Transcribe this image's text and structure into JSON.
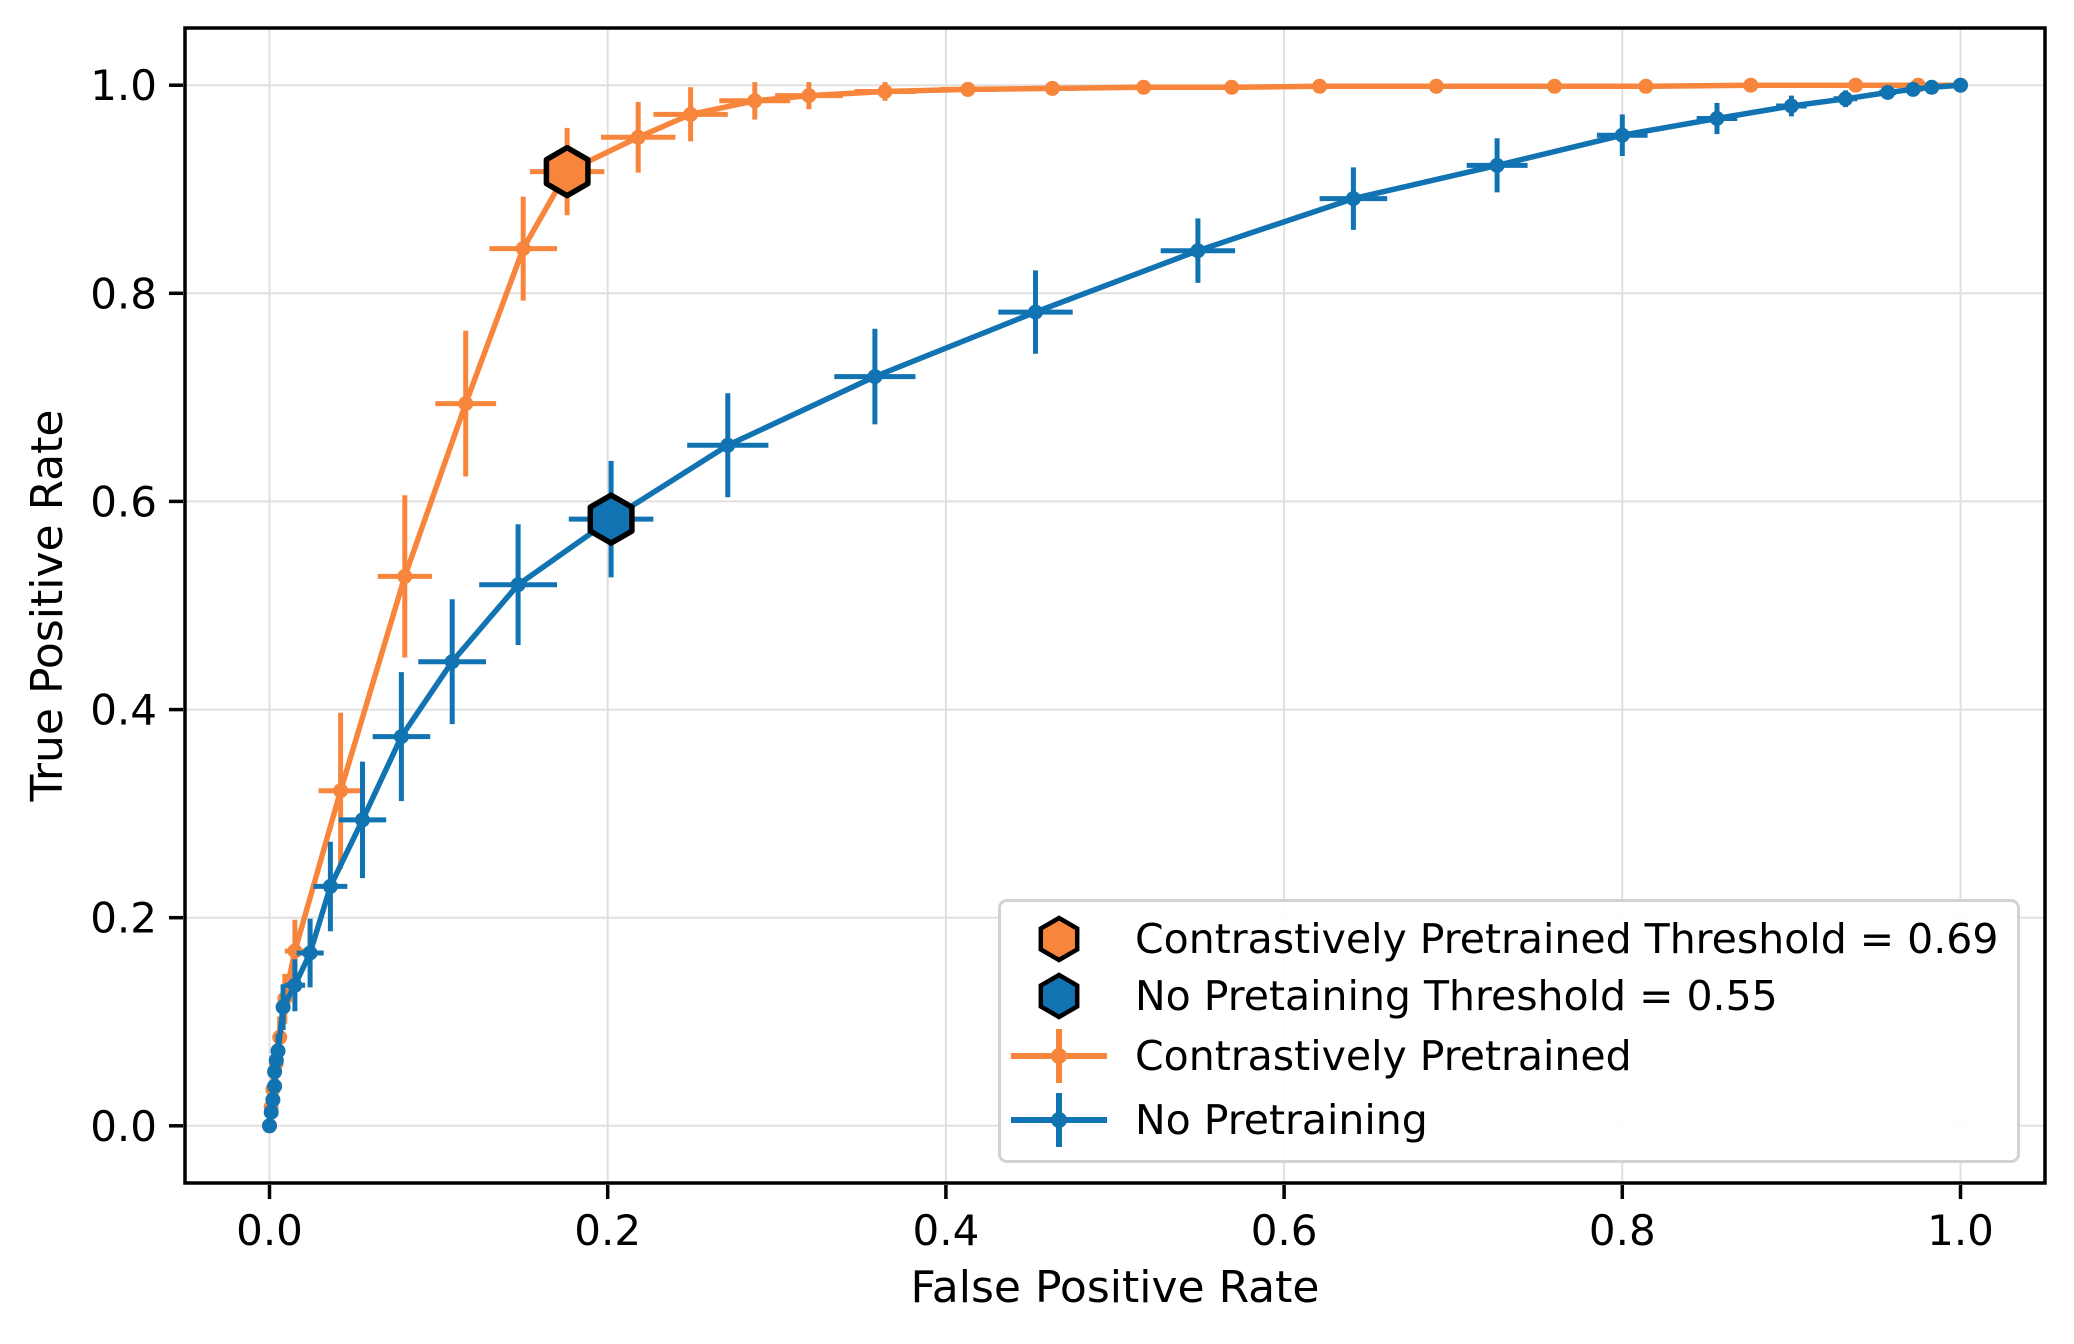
{
  "chart_data": {
    "type": "line",
    "title": "",
    "xlabel": "False Positive Rate",
    "ylabel": "True Positive Rate",
    "xlim": [
      -0.05,
      1.05
    ],
    "ylim": [
      -0.055,
      1.055
    ],
    "grid": true,
    "legend_position": "lower right",
    "grid_color": "#e0e0e0",
    "axes_color": "#000000",
    "xticks": {
      "values": [
        0,
        0.2,
        0.4,
        0.6,
        0.8,
        1.0
      ],
      "labels": [
        "0.0",
        "0.2",
        "0.4",
        "0.6",
        "0.8",
        "1.0"
      ]
    },
    "yticks": {
      "values": [
        0,
        0.2,
        0.4,
        0.6,
        0.8,
        1.0
      ],
      "labels": [
        "0.0",
        "0.2",
        "0.4",
        "0.6",
        "0.8",
        "1.0"
      ]
    },
    "series": [
      {
        "name": "Contrastively Pretrained",
        "color": "#f7863c",
        "x": [
          0.0,
          0.001,
          0.002,
          0.004,
          0.006,
          0.009,
          0.015,
          0.042,
          0.08,
          0.116,
          0.15,
          0.176,
          0.218,
          0.249,
          0.287,
          0.319,
          0.364,
          0.413,
          0.463,
          0.517,
          0.569,
          0.621,
          0.69,
          0.76,
          0.814,
          0.876,
          0.938,
          0.975,
          1.0
        ],
        "y": [
          0.0,
          0.018,
          0.035,
          0.06,
          0.085,
          0.122,
          0.168,
          0.322,
          0.528,
          0.694,
          0.843,
          0.917,
          0.95,
          0.972,
          0.985,
          0.99,
          0.994,
          0.996,
          0.997,
          0.998,
          0.998,
          0.999,
          0.999,
          0.999,
          0.999,
          1.0,
          1.0,
          1.0,
          1.0
        ],
        "xerr": [
          0,
          0.001,
          0.002,
          0.002,
          0.003,
          0.004,
          0.006,
          0.013,
          0.016,
          0.018,
          0.02,
          0.022,
          0.022,
          0.022,
          0.021,
          0.02,
          0.018,
          0.016,
          0.014,
          0.012,
          0.01,
          0.008,
          0.006,
          0.005,
          0.004,
          0.003,
          0.002,
          0.001,
          0
        ],
        "yerr": [
          0,
          0.008,
          0.012,
          0.016,
          0.02,
          0.024,
          0.03,
          0.075,
          0.078,
          0.07,
          0.05,
          0.042,
          0.034,
          0.026,
          0.018,
          0.013,
          0.009,
          0.007,
          0.005,
          0.004,
          0.003,
          0.003,
          0.002,
          0.002,
          0.002,
          0.001,
          0.001,
          0.001,
          0
        ]
      },
      {
        "name": "No Pretraining",
        "color": "#1173b1",
        "x": [
          0.0,
          0.001,
          0.002,
          0.003,
          0.003,
          0.004,
          0.005,
          0.008,
          0.015,
          0.024,
          0.036,
          0.055,
          0.078,
          0.108,
          0.147,
          0.202,
          0.271,
          0.358,
          0.453,
          0.549,
          0.641,
          0.726,
          0.8,
          0.856,
          0.9,
          0.932,
          0.957,
          0.972,
          0.983,
          1.0
        ],
        "y": [
          0.0,
          0.013,
          0.025,
          0.038,
          0.052,
          0.063,
          0.072,
          0.114,
          0.135,
          0.166,
          0.23,
          0.294,
          0.374,
          0.446,
          0.52,
          0.583,
          0.654,
          0.72,
          0.782,
          0.841,
          0.891,
          0.923,
          0.952,
          0.968,
          0.98,
          0.987,
          0.993,
          0.996,
          0.998,
          1.0
        ],
        "xerr": [
          0,
          0.001,
          0.001,
          0.002,
          0.002,
          0.002,
          0.003,
          0.004,
          0.006,
          0.008,
          0.01,
          0.014,
          0.017,
          0.02,
          0.023,
          0.025,
          0.024,
          0.024,
          0.022,
          0.022,
          0.02,
          0.018,
          0.015,
          0.012,
          0.009,
          0.007,
          0.005,
          0.004,
          0.003,
          0
        ],
        "yerr": [
          0,
          0.006,
          0.01,
          0.012,
          0.014,
          0.015,
          0.016,
          0.022,
          0.025,
          0.033,
          0.043,
          0.056,
          0.062,
          0.06,
          0.058,
          0.056,
          0.05,
          0.046,
          0.04,
          0.031,
          0.03,
          0.026,
          0.02,
          0.015,
          0.01,
          0.008,
          0.006,
          0.004,
          0.003,
          0
        ]
      }
    ],
    "threshold_points": [
      {
        "label": "Contrastively Pretrained Threshold = 0.69",
        "threshold": 0.69,
        "x": 0.176,
        "y": 0.917,
        "color": "#f7863c"
      },
      {
        "label": "No Pretaining Threshold = 0.55",
        "threshold": 0.55,
        "x": 0.202,
        "y": 0.583,
        "color": "#1173b1"
      }
    ],
    "legend": {
      "entries": [
        {
          "marker": "hexagon",
          "label": "Contrastively Pretrained Threshold = 0.69"
        },
        {
          "marker": "hexagon",
          "label": "No Pretaining Threshold = 0.55"
        },
        {
          "marker": "errorbar",
          "label": "Contrastively Pretrained"
        },
        {
          "marker": "errorbar",
          "label": "No Pretraining"
        }
      ]
    }
  }
}
